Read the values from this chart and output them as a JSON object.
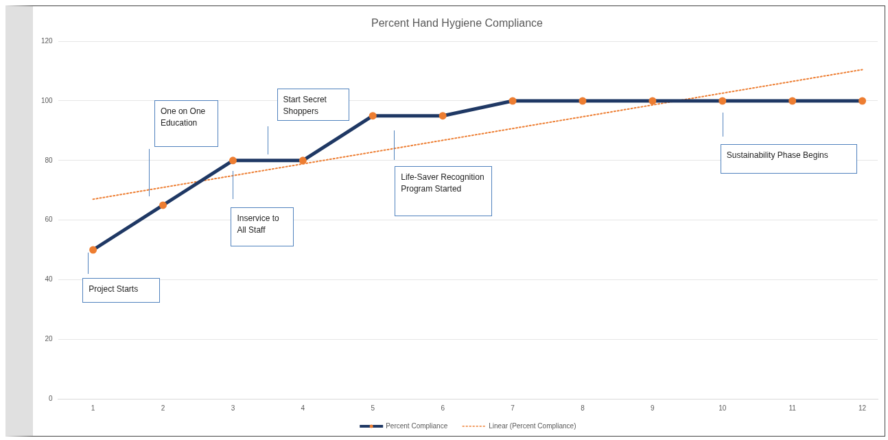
{
  "chart_data": {
    "type": "line",
    "title": "Percent Hand Hygiene Compliance",
    "x": [
      1,
      2,
      3,
      4,
      5,
      6,
      7,
      8,
      9,
      10,
      11,
      12
    ],
    "series": [
      {
        "name": "Percent Compliance",
        "type": "line",
        "color": "#1f3864",
        "colors": [
          "#ed7d31",
          "#ed7d31",
          "#ed7d31",
          "#ed7d31",
          "#ed7d31",
          "#ed7d31",
          "#ed7d31",
          "#ed7d31",
          "#ed7d31",
          "#ed7d31",
          "#ed7d31",
          "#ed7d31"
        ],
        "marker": "circle",
        "line_style": "solid",
        "values": [
          50,
          65,
          80,
          80,
          95,
          95,
          100,
          100,
          100,
          100,
          100,
          100
        ]
      },
      {
        "name": "Linear (Percent Compliance)",
        "type": "line",
        "color": "#ed7d31",
        "marker": "none",
        "line_style": "dotted",
        "x": [
          1,
          12
        ],
        "values": [
          67,
          110.5
        ]
      }
    ],
    "xlim": [
      0.5,
      12.22
    ],
    "xticks": [
      1,
      2,
      3,
      4,
      5,
      6,
      7,
      8,
      9,
      10,
      11,
      12
    ],
    "ylim": [
      0,
      120
    ],
    "yticks": [
      0,
      20,
      40,
      60,
      80,
      100,
      120
    ],
    "grid": "y",
    "legend": "bottom",
    "annotations": [
      {
        "text": "Project Starts",
        "x": 0.93,
        "y": 49
      },
      "One on One Education",
      "Inservice to All Staff",
      "Start Secret Shoppers",
      "Life-Saver Recognition Program Started",
      "Sustainability Phase Begins"
    ]
  }
}
